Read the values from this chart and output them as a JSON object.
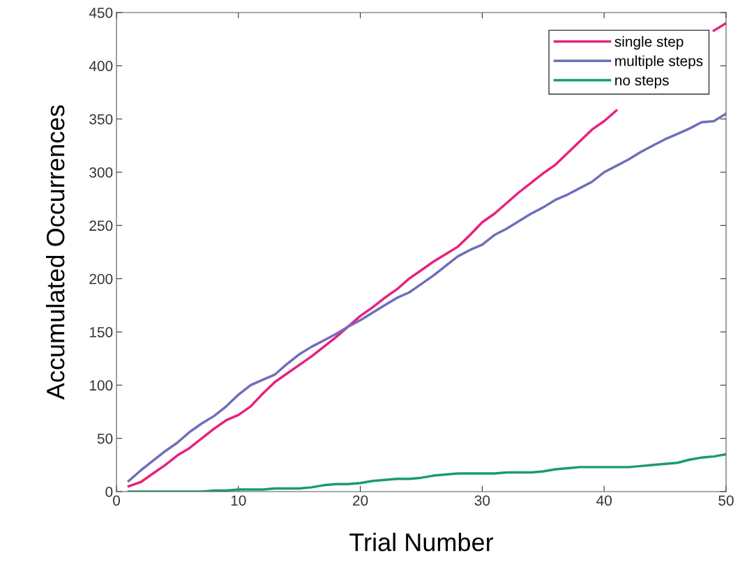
{
  "chart_data": {
    "type": "line",
    "xlabel": "Trial Number",
    "ylabel": "Accumulated Occurrences",
    "x": [
      1,
      2,
      3,
      4,
      5,
      6,
      7,
      8,
      9,
      10,
      11,
      12,
      13,
      14,
      15,
      16,
      17,
      18,
      19,
      20,
      21,
      22,
      23,
      24,
      25,
      26,
      27,
      28,
      29,
      30,
      31,
      32,
      33,
      34,
      35,
      36,
      37,
      38,
      39,
      40,
      41,
      42,
      43,
      44,
      45,
      46,
      47,
      48,
      49,
      50
    ],
    "series": [
      {
        "name": "single step",
        "color": "#e8207e",
        "values": [
          5,
          9,
          17,
          25,
          34,
          41,
          50,
          59,
          67,
          72,
          80,
          92,
          103,
          111,
          119,
          127,
          136,
          145,
          155,
          165,
          173,
          182,
          190,
          200,
          208,
          216,
          223,
          230,
          241,
          253,
          261,
          271,
          281,
          290,
          299,
          307,
          318,
          329,
          340,
          348,
          358,
          null,
          null,
          null,
          null,
          null,
          null,
          null,
          433,
          440
        ]
      },
      {
        "name": "multiple steps",
        "color": "#6e6ebc",
        "values": [
          10,
          20,
          29,
          38,
          46,
          56,
          64,
          71,
          80,
          91,
          100,
          105,
          110,
          120,
          129,
          136,
          142,
          148,
          155,
          161,
          168,
          175,
          182,
          187,
          195,
          203,
          212,
          221,
          227,
          232,
          241,
          247,
          254,
          261,
          267,
          274,
          279,
          285,
          291,
          300,
          306,
          312,
          319,
          325,
          331,
          336,
          341,
          347,
          348,
          355
        ]
      },
      {
        "name": "no steps",
        "color": "#1a9a72",
        "values": [
          0,
          0,
          0,
          0,
          0,
          0,
          0,
          1,
          1,
          2,
          2,
          2,
          3,
          3,
          3,
          4,
          6,
          7,
          7,
          8,
          10,
          11,
          12,
          12,
          13,
          15,
          16,
          17,
          17,
          17,
          17,
          18,
          18,
          18,
          19,
          21,
          22,
          23,
          23,
          23,
          23,
          23,
          24,
          25,
          26,
          27,
          30,
          32,
          33,
          35
        ]
      }
    ],
    "xlim": [
      0,
      50
    ],
    "xticks": [
      0,
      10,
      20,
      30,
      40,
      50
    ],
    "ylim": [
      0,
      450
    ],
    "yticks": [
      0,
      50,
      100,
      150,
      200,
      250,
      300,
      350,
      400,
      450
    ],
    "grid": false,
    "legend": "top right",
    "marker": "none",
    "line_style": "solid"
  }
}
